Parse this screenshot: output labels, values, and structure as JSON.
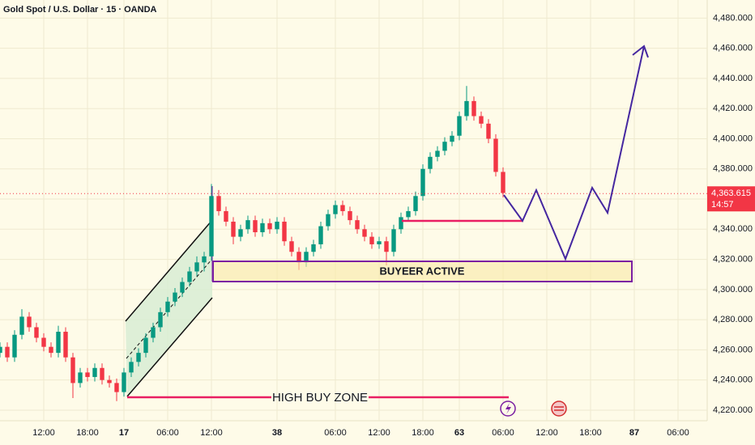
{
  "chart_data": {
    "type": "candlestick",
    "title": "Gold Spot / U.S. Dollar · 15 · OANDA",
    "xlim": [
      0,
      97
    ],
    "xticks": [
      {
        "value": 6,
        "label": "12:00"
      },
      {
        "value": 12,
        "label": "18:00"
      },
      17,
      {
        "value": 23,
        "label": "06:00"
      },
      {
        "value": 29,
        "label": "12:00"
      },
      38,
      {
        "value": 46,
        "label": "06:00"
      },
      {
        "value": 52,
        "label": "12:00"
      },
      {
        "value": 58,
        "label": "18:00"
      },
      63,
      {
        "value": 69,
        "label": "06:00"
      },
      {
        "value": 75,
        "label": "12:00"
      },
      {
        "value": 81,
        "label": "18:00"
      },
      87,
      {
        "value": 93,
        "label": "06:00"
      }
    ],
    "ylim": [
      4213,
      4492
    ],
    "yticks": [
      {
        "value": 4220,
        "label": "4,220.000"
      },
      {
        "value": 4240,
        "label": "4,240.000"
      },
      {
        "value": 4260,
        "label": "4,260.000"
      },
      {
        "value": 4280,
        "label": "4,280.000"
      },
      {
        "value": 4300,
        "label": "4,300.000"
      },
      {
        "value": 4320,
        "label": "4,320.000"
      },
      {
        "value": 4340,
        "label": "4,340.000"
      },
      {
        "value": 4360,
        "label": "4,360.000"
      },
      {
        "value": 4380,
        "label": "4,380.000"
      },
      {
        "value": 4400,
        "label": "4,400.000"
      },
      {
        "value": 4420,
        "label": "4,420.000"
      },
      {
        "value": 4440,
        "label": "4,440.000"
      },
      {
        "value": 4460,
        "label": "4,460.000"
      },
      {
        "value": 4480,
        "label": "4,480.000"
      }
    ],
    "grid": true,
    "up_color": "#089981",
    "down_color": "#f23645",
    "x": [
      0,
      1,
      2,
      3,
      4,
      5,
      6,
      7,
      8,
      9,
      10,
      11,
      12,
      13,
      14,
      15,
      16,
      17,
      18,
      19,
      20,
      21,
      22,
      23,
      24,
      25,
      26,
      27,
      28,
      29,
      30,
      31,
      32,
      33,
      34,
      35,
      36,
      37,
      38,
      39,
      40,
      41,
      42,
      43,
      44,
      45,
      46,
      47,
      48,
      49,
      50,
      51,
      52,
      53,
      54,
      55,
      56,
      57,
      58,
      59,
      60,
      61,
      62,
      63,
      64,
      65,
      66,
      67,
      68,
      69
    ],
    "open": [
      4258,
      4262,
      4255,
      4270,
      4282,
      4275,
      4268,
      4262,
      4258,
      4272,
      4255,
      4238,
      4245,
      4242,
      4248,
      4240,
      4238,
      4232,
      4245,
      4252,
      4258,
      4268,
      4275,
      4285,
      4292,
      4298,
      4305,
      4312,
      4318,
      4322,
      4362,
      4352,
      4345,
      4335,
      4340,
      4346,
      4338,
      4344,
      4340,
      4345,
      4332,
      4325,
      4318,
      4325,
      4330,
      4342,
      4350,
      4356,
      4352,
      4346,
      4340,
      4335,
      4330,
      4332,
      4325,
      4340,
      4348,
      4352,
      4362,
      4380,
      4388,
      4392,
      4398,
      4402,
      4415,
      4425,
      4415,
      4410,
      4400,
      4378
    ],
    "high": [
      4265,
      4265,
      4273,
      4287,
      4285,
      4278,
      4271,
      4265,
      4276,
      4275,
      4258,
      4248,
      4248,
      4251,
      4251,
      4243,
      4241,
      4248,
      4255,
      4261,
      4271,
      4278,
      4288,
      4295,
      4301,
      4308,
      4315,
      4322,
      4325,
      4370,
      4366,
      4355,
      4348,
      4343,
      4349,
      4349,
      4347,
      4347,
      4348,
      4348,
      4335,
      4328,
      4328,
      4333,
      4345,
      4353,
      4359,
      4359,
      4355,
      4349,
      4343,
      4338,
      4335,
      4335,
      4343,
      4351,
      4355,
      4365,
      4383,
      4391,
      4395,
      4401,
      4405,
      4418,
      4435,
      4428,
      4418,
      4413,
      4403,
      4381
    ],
    "low": [
      4255,
      4252,
      4252,
      4267,
      4272,
      4265,
      4259,
      4255,
      4255,
      4252,
      4228,
      4235,
      4239,
      4239,
      4237,
      4235,
      4226,
      4229,
      4242,
      4249,
      4255,
      4265,
      4272,
      4282,
      4289,
      4295,
      4302,
      4309,
      4312,
      4319,
      4349,
      4342,
      4330,
      4332,
      4337,
      4335,
      4335,
      4337,
      4337,
      4329,
      4322,
      4313,
      4315,
      4322,
      4327,
      4339,
      4347,
      4349,
      4343,
      4337,
      4332,
      4327,
      4327,
      4316,
      4322,
      4337,
      4345,
      4349,
      4359,
      4377,
      4385,
      4389,
      4395,
      4399,
      4412,
      4412,
      4407,
      4397,
      4375,
      4361
    ],
    "close": [
      4262,
      4255,
      4270,
      4282,
      4275,
      4268,
      4262,
      4258,
      4272,
      4255,
      4238,
      4245,
      4242,
      4248,
      4240,
      4238,
      4232,
      4245,
      4252,
      4258,
      4268,
      4275,
      4285,
      4292,
      4298,
      4305,
      4312,
      4318,
      4322,
      4362,
      4352,
      4345,
      4335,
      4340,
      4346,
      4338,
      4344,
      4340,
      4345,
      4332,
      4325,
      4318,
      4325,
      4330,
      4342,
      4350,
      4356,
      4352,
      4346,
      4340,
      4335,
      4330,
      4332,
      4325,
      4340,
      4348,
      4352,
      4362,
      4380,
      4388,
      4392,
      4398,
      4402,
      4415,
      4425,
      4415,
      4410,
      4400,
      4378,
      4364
    ],
    "last_price": {
      "value": 4363.615,
      "label": "4,363.615"
    },
    "countdown": "14:57",
    "annotations": [
      "BUYEER ACTIVE",
      "HIGH BUY ZONE"
    ]
  }
}
